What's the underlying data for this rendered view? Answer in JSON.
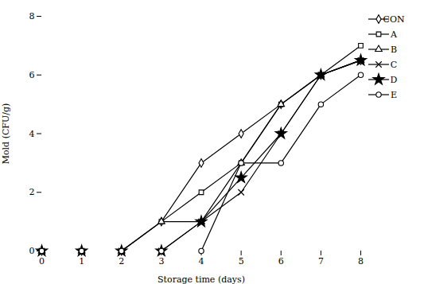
{
  "chart_data": {
    "type": "line",
    "title": "",
    "xlabel": "Storage time (days)",
    "ylabel": "Mold (CFU/g)",
    "x": [
      0,
      1,
      2,
      3,
      4,
      5,
      6,
      7,
      8
    ],
    "series": [
      {
        "name": "CON",
        "color": "#000000",
        "marker": "diamond",
        "values": [
          0,
          0,
          0,
          1.0,
          3.0,
          4.0,
          5.0,
          6.0,
          6.5
        ]
      },
      {
        "name": "A",
        "color": "#000000",
        "marker": "square",
        "values": [
          0,
          0,
          0,
          1.0,
          2.0,
          3.0,
          5.0,
          6.0,
          7.0
        ]
      },
      {
        "name": "B",
        "color": "#000000",
        "marker": "triangle",
        "values": [
          0,
          0,
          0,
          1.0,
          1.0,
          3.0,
          5.0,
          6.0,
          6.5
        ]
      },
      {
        "name": "C",
        "color": "#000000",
        "marker": "x",
        "values": [
          0,
          0,
          0,
          0,
          1.0,
          2.0,
          4.0,
          6.0,
          6.5
        ]
      },
      {
        "name": "D",
        "color": "#000000",
        "marker": "star",
        "values": [
          0,
          0,
          0,
          0,
          1.0,
          2.5,
          4.0,
          6.0,
          6.5
        ]
      },
      {
        "name": "E",
        "color": "#000000",
        "marker": "circle",
        "values": [
          0,
          0,
          0,
          0,
          0,
          3.0,
          3.0,
          5.0,
          6.0
        ]
      }
    ],
    "xlim": [
      0,
      8
    ],
    "xticks": [
      0,
      1,
      2,
      3,
      4,
      5,
      6,
      7,
      8
    ],
    "ylim": [
      0,
      8
    ],
    "yticks": [
      0,
      2,
      4,
      6,
      8
    ],
    "grid": false,
    "legend": "right"
  }
}
